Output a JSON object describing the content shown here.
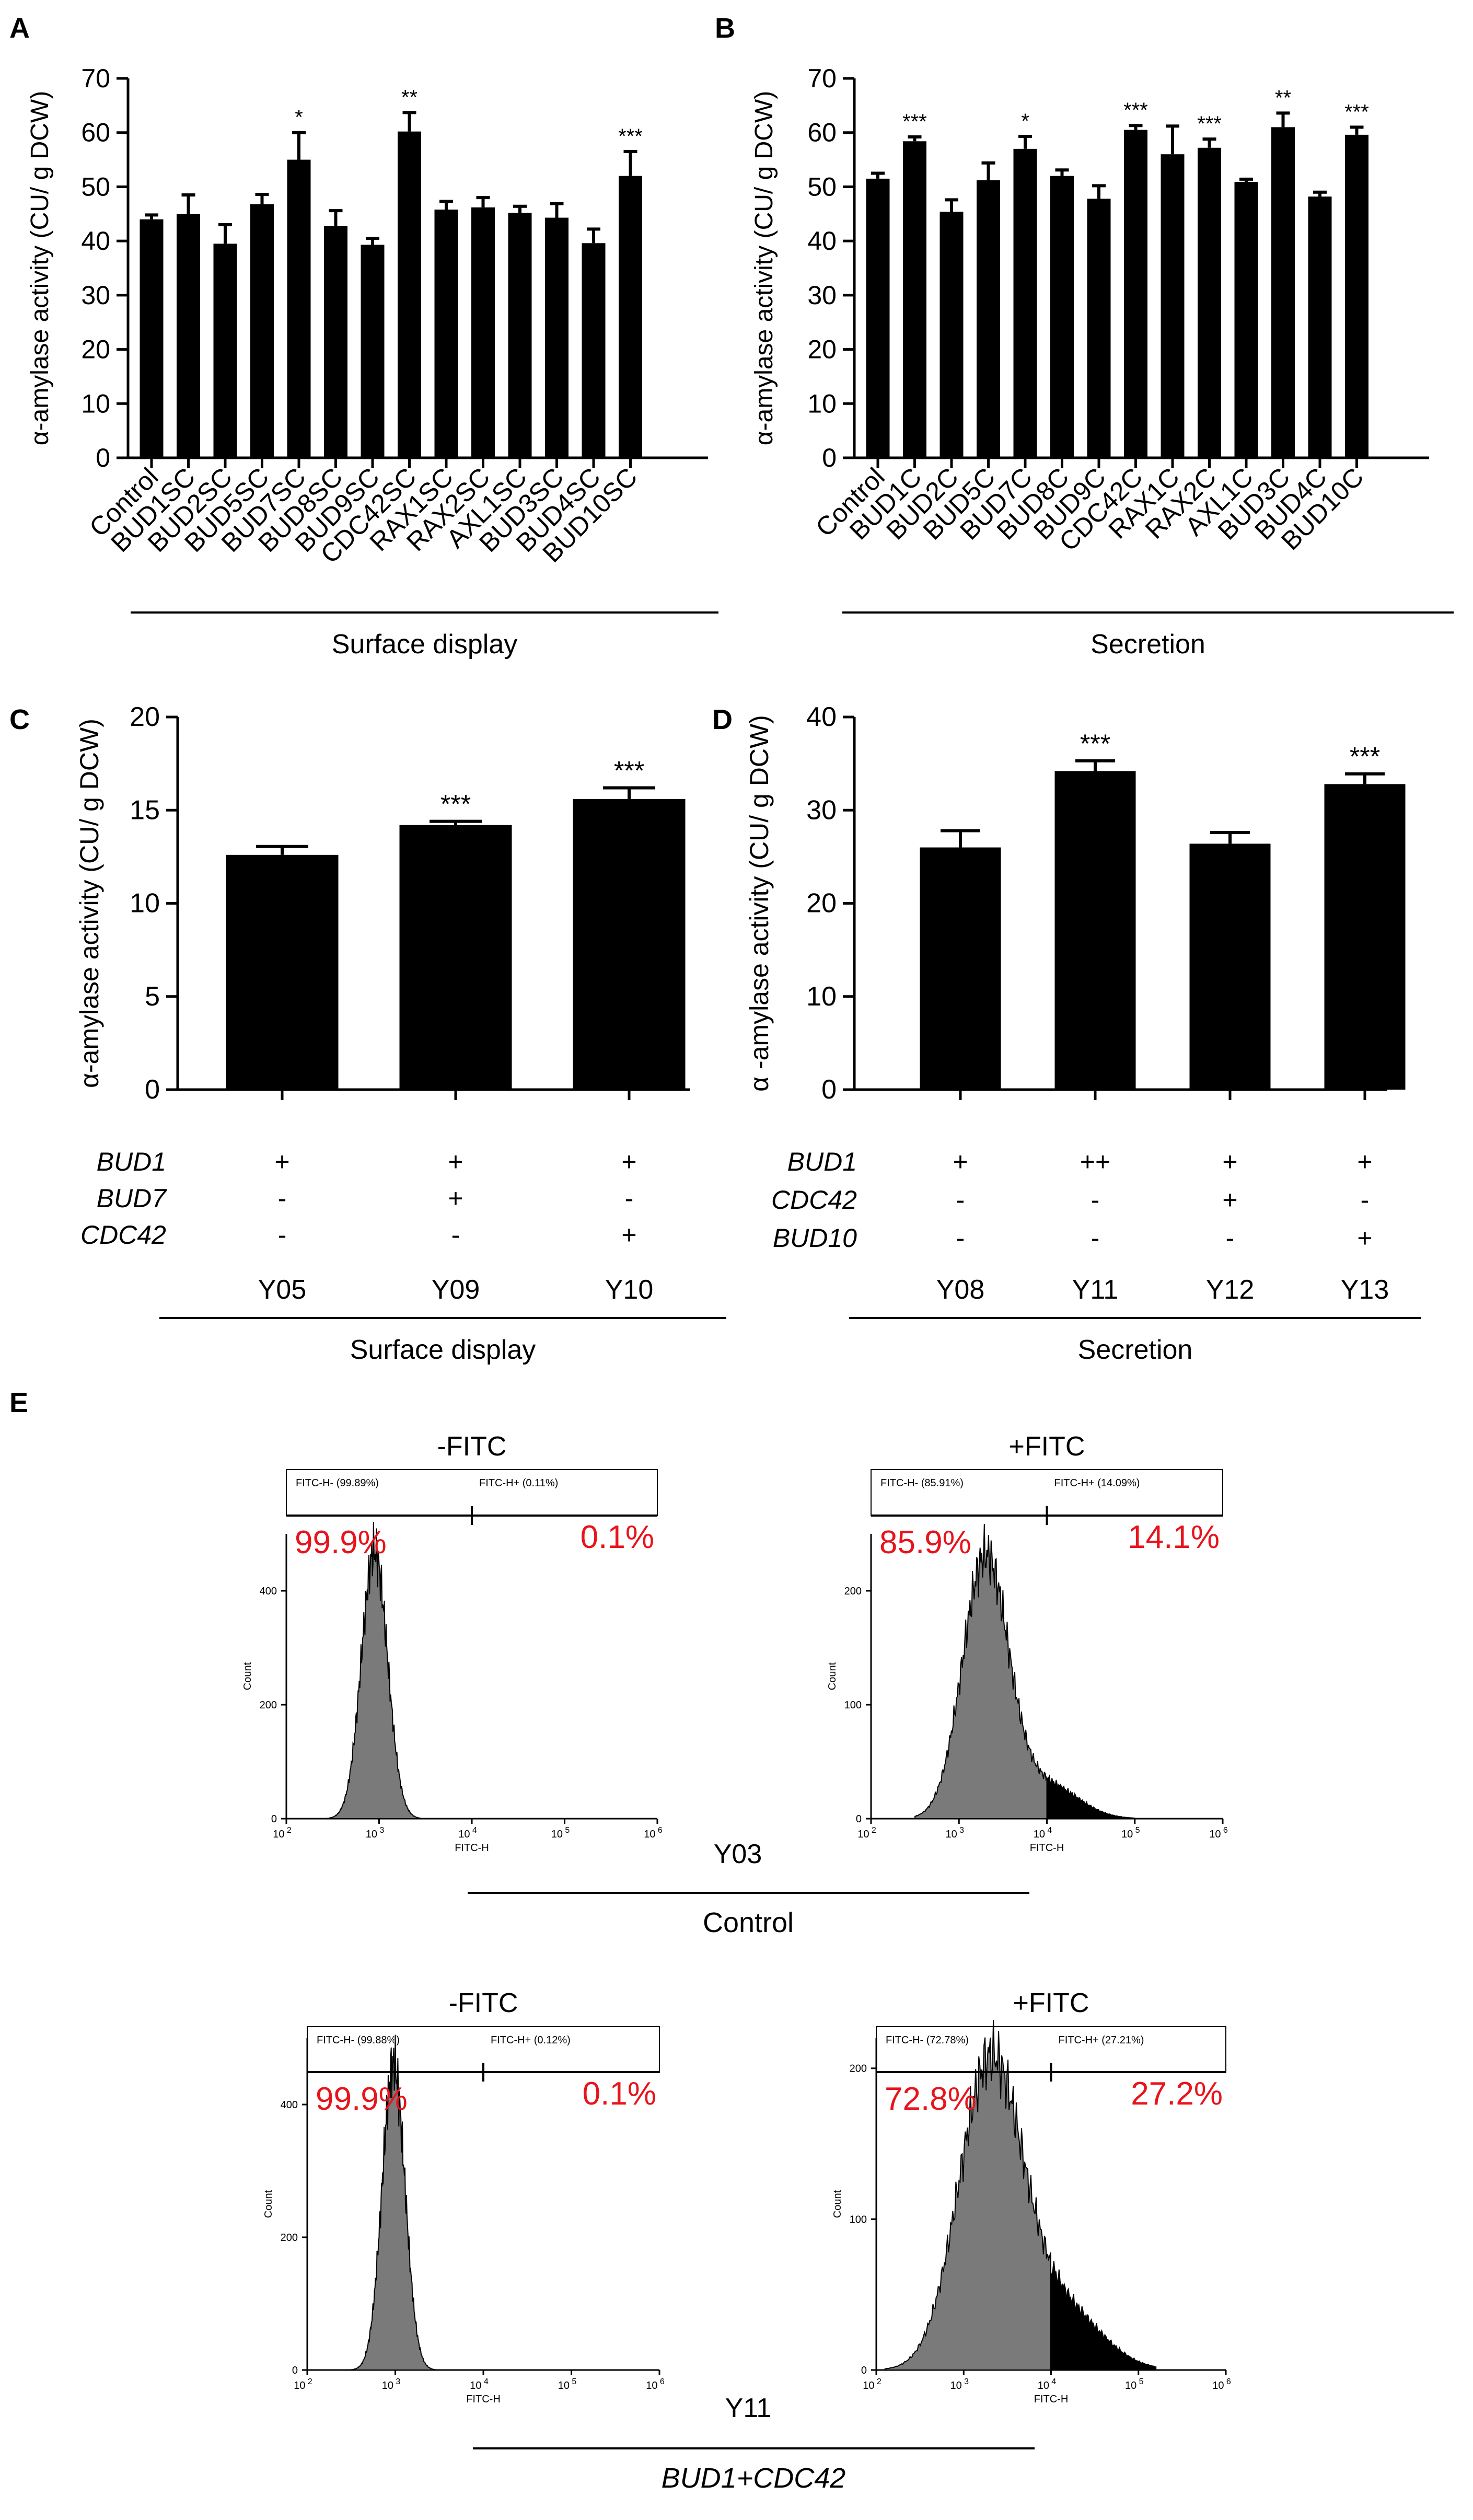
{
  "colors": {
    "bar": "#000000",
    "axis": "#000000",
    "gate_pct": "#e8131b",
    "hist_neg": "#7a7a7a",
    "hist_pos": "#000000"
  },
  "chart_data": [
    {
      "panel": "A",
      "type": "bar",
      "ylabel": "α-amylase activity (CU/ g DCW)",
      "ylim": [
        0,
        70
      ],
      "yticks": [
        "0",
        "10",
        "20",
        "30",
        "40",
        "50",
        "60",
        "70"
      ],
      "categories": [
        "Control",
        "BUD1SC",
        "BUD2SC",
        "BUD5SC",
        "BUD7SC",
        "BUD8SC",
        "BUD9SC",
        "CDC42SC",
        "RAX1SC",
        "RAX2SC",
        "AXL1SC",
        "BUD3SC",
        "BUD4SC",
        "BUD10SC"
      ],
      "values": [
        44,
        45,
        39.5,
        46.8,
        55,
        42.8,
        39.3,
        60.2,
        45.8,
        46.2,
        45.2,
        44.3,
        39.6,
        52
      ],
      "errors": [
        0.8,
        3.5,
        3.5,
        1.8,
        5.0,
        2.8,
        1.2,
        3.5,
        1.5,
        1.8,
        1.2,
        2.6,
        2.6,
        4.5
      ],
      "significance": [
        "",
        "",
        "",
        "",
        "*",
        "",
        "",
        "**",
        "",
        "",
        "",
        "",
        "",
        "***"
      ],
      "group_label": "Surface display"
    },
    {
      "panel": "B",
      "type": "bar",
      "ylabel": "α-amylase activity (CU/ g DCW)",
      "ylim": [
        0,
        70
      ],
      "yticks": [
        "0",
        "10",
        "20",
        "30",
        "40",
        "50",
        "60",
        "70"
      ],
      "categories": [
        "Control",
        "BUD1C",
        "BUD2C",
        "BUD5C",
        "BUD7C",
        "BUD8C",
        "BUD9C",
        "CDC42C",
        "RAX1C",
        "RAX2C",
        "AXL1C",
        "BUD3C",
        "BUD4C",
        "BUD10C"
      ],
      "values": [
        51.5,
        58.4,
        45.4,
        51.2,
        57,
        52,
        47.8,
        60.5,
        56,
        57.2,
        50.9,
        61,
        48.2,
        59.6
      ],
      "errors": [
        1.0,
        0.8,
        2.2,
        3.2,
        2.3,
        1.1,
        2.4,
        0.8,
        5.2,
        1.6,
        0.5,
        2.6,
        0.8,
        1.4
      ],
      "significance": [
        "",
        "***",
        "",
        "",
        "*",
        "",
        "",
        "***",
        "",
        "***",
        "",
        "**",
        "",
        "***"
      ],
      "group_label": "Secretion"
    },
    {
      "panel": "C",
      "type": "bar",
      "ylabel": "α-amylase activity (CU/ g DCW)",
      "ylim": [
        0,
        20
      ],
      "yticks": [
        "0",
        "5",
        "10",
        "15",
        "20"
      ],
      "categories": [
        "Y05",
        "Y09",
        "Y10"
      ],
      "values": [
        12.6,
        14.2,
        15.6
      ],
      "errors": [
        0.45,
        0.2,
        0.6
      ],
      "significance": [
        "",
        "***",
        "***"
      ],
      "genotype_table": {
        "rows": [
          {
            "gene": "BUD1",
            "marks": [
              "+",
              "+",
              "+"
            ]
          },
          {
            "gene": "BUD7",
            "marks": [
              "-",
              "+",
              "-"
            ]
          },
          {
            "gene": "CDC42",
            "marks": [
              "-",
              "-",
              "+"
            ]
          }
        ]
      },
      "group_label": "Surface display"
    },
    {
      "panel": "D",
      "type": "bar",
      "ylabel": "α -amylase activity (CU/ g DCW)",
      "ylim": [
        0,
        40
      ],
      "yticks": [
        "0",
        "10",
        "20",
        "30",
        "40"
      ],
      "categories": [
        "Y08",
        "Y11",
        "Y12",
        "Y13"
      ],
      "values": [
        26,
        34.2,
        26.4,
        32.8
      ],
      "errors": [
        1.8,
        1.1,
        1.2,
        1.1
      ],
      "significance": [
        "",
        "***",
        "",
        "***"
      ],
      "genotype_table": {
        "rows": [
          {
            "gene": "BUD1",
            "marks": [
              "+",
              "++",
              "+",
              "+"
            ]
          },
          {
            "gene": "CDC42",
            "marks": [
              "-",
              "-",
              "+",
              "-"
            ]
          },
          {
            "gene": "BUD10",
            "marks": [
              "-",
              "-",
              "-",
              "+"
            ]
          }
        ]
      },
      "group_label": "Secretion"
    }
  ],
  "panel_letters": [
    "A",
    "B",
    "C",
    "D",
    "E"
  ],
  "flow": {
    "groups": [
      {
        "strain": "Y03",
        "label": "Control",
        "label_italic": false,
        "plots": [
          {
            "title": "-FITC",
            "ymax": 500,
            "yticks": [
              "0",
              "200",
              "400"
            ],
            "ylabel": "Count",
            "xlabel": "FITC-H",
            "gate_neg_label": "FITC-H-  (99.89%)",
            "gate_pos_label": "FITC-H+  (0.11%)",
            "neg_pct": "99.9%",
            "pos_pct": "0.1%",
            "xticks": [
              {
                "base": "10",
                "exp": "2"
              },
              {
                "base": "10",
                "exp": "3"
              },
              {
                "base": "10",
                "exp": "4"
              },
              {
                "base": "10",
                "exp": "5"
              },
              {
                "base": "10",
                "exp": "6"
              }
            ]
          },
          {
            "title": "+FITC",
            "ymax": 250,
            "yticks": [
              "0",
              "100",
              "200"
            ],
            "ylabel": "Count",
            "xlabel": "FITC-H",
            "gate_neg_label": "FITC-H-  (85.91%)",
            "gate_pos_label": "FITC-H+  (14.09%)",
            "neg_pct": "85.9%",
            "pos_pct": "14.1%",
            "xticks": [
              {
                "base": "10",
                "exp": "2"
              },
              {
                "base": "10",
                "exp": "3"
              },
              {
                "base": "10",
                "exp": "4"
              },
              {
                "base": "10",
                "exp": "5"
              },
              {
                "base": "10",
                "exp": "6"
              }
            ]
          }
        ]
      },
      {
        "strain": "Y11",
        "label": "BUD1+CDC42",
        "label_italic": true,
        "plots": [
          {
            "title": "-FITC",
            "ymax": 500,
            "yticks": [
              "0",
              "200",
              "400"
            ],
            "ylabel": "Count",
            "xlabel": "FITC-H",
            "gate_neg_label": "FITC-H-  (99.88%)",
            "gate_pos_label": "FITC-H+  (0.12%)",
            "neg_pct": "99.9%",
            "pos_pct": "0.1%",
            "xticks": [
              {
                "base": "10",
                "exp": "2"
              },
              {
                "base": "10",
                "exp": "3"
              },
              {
                "base": "10",
                "exp": "4"
              },
              {
                "base": "10",
                "exp": "5"
              },
              {
                "base": "10",
                "exp": "6"
              }
            ]
          },
          {
            "title": "+FITC",
            "ymax": 220,
            "yticks": [
              "0",
              "100",
              "200"
            ],
            "ylabel": "Count",
            "xlabel": "FITC-H",
            "gate_neg_label": "FITC-H-  (72.78%)",
            "gate_pos_label": "FITC-H+  (27.21%)",
            "neg_pct": "72.8%",
            "pos_pct": "27.2%",
            "xticks": [
              {
                "base": "10",
                "exp": "2"
              },
              {
                "base": "10",
                "exp": "3"
              },
              {
                "base": "10",
                "exp": "4"
              },
              {
                "base": "10",
                "exp": "5"
              },
              {
                "base": "10",
                "exp": "6"
              }
            ]
          }
        ]
      }
    ]
  }
}
